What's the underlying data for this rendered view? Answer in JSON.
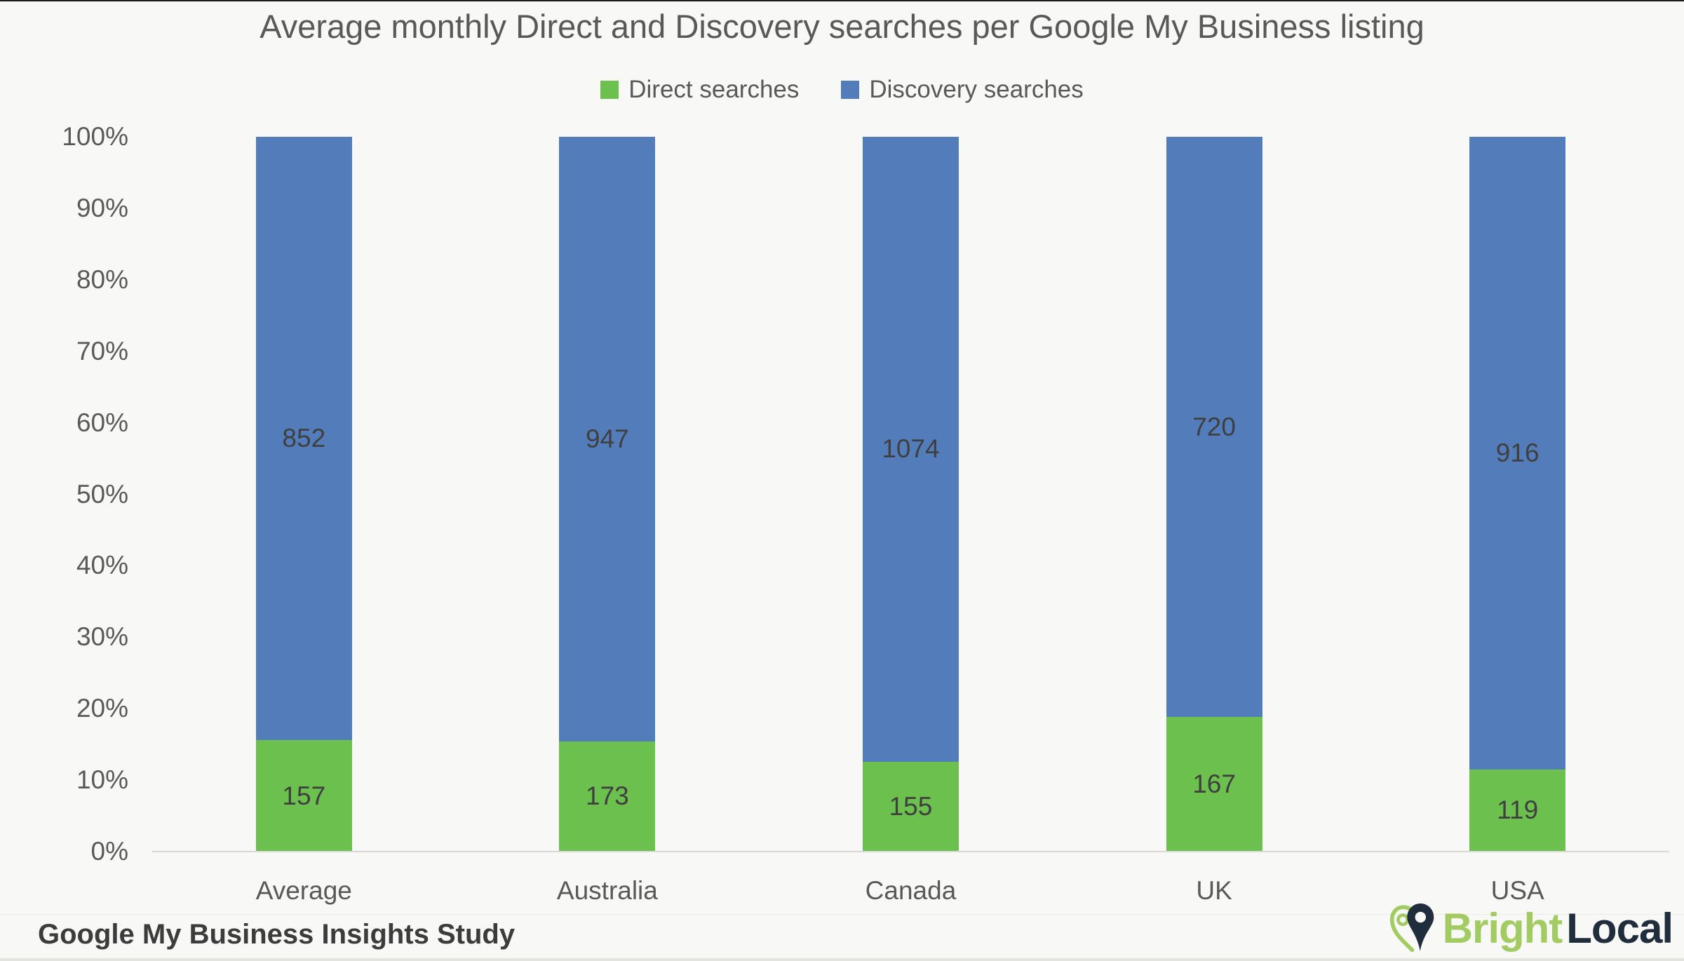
{
  "title": "Average monthly Direct and Discovery searches per Google My Business listing",
  "legend": [
    {
      "label": "Direct searches",
      "color": "#6bc04e"
    },
    {
      "label": "Discovery searches",
      "color": "#537dba"
    }
  ],
  "chart_data": {
    "type": "bar",
    "subtype": "stacked-100-percent",
    "categories": [
      "Average",
      "Australia",
      "Canada",
      "UK",
      "USA"
    ],
    "series": [
      {
        "name": "Direct searches",
        "color": "#6bc04e",
        "values": [
          157,
          173,
          155,
          167,
          119
        ]
      },
      {
        "name": "Discovery searches",
        "color": "#537dba",
        "values": [
          852,
          947,
          1074,
          720,
          916
        ]
      }
    ],
    "y_axis": {
      "ticks": [
        "0%",
        "10%",
        "20%",
        "30%",
        "40%",
        "50%",
        "60%",
        "70%",
        "80%",
        "90%",
        "100%"
      ],
      "min": 0,
      "max": 100,
      "unit": "percent"
    },
    "grid": false,
    "legend_position": "top",
    "value_labels": "inside-segments"
  },
  "footer": {
    "source": "Google My Business Insights Study"
  },
  "brand": {
    "part1": "Bright",
    "part2": "Local",
    "green": "#a2cc61",
    "navy": "#1f2d3d"
  },
  "colors": {
    "background": "#f8f8f6",
    "axis_text": "#595959",
    "bar_label_text": "#3f3f3f",
    "baseline": "#d8d8d5"
  }
}
